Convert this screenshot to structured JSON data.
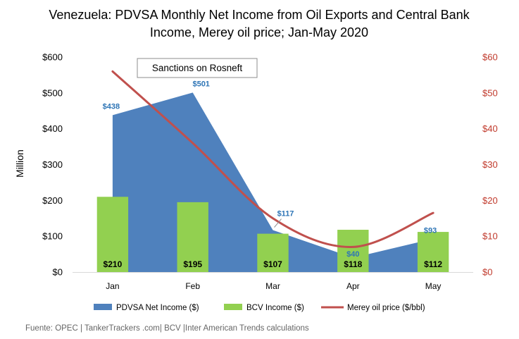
{
  "chart_data": {
    "type": "area",
    "title_lines": [
      "Venezuela: PDVSA Monthly Net Income from Oil Exports and Central Bank",
      "Income, Merey oil price; Jan-May 2020"
    ],
    "ylabel": "Million",
    "ylim": [
      0,
      600
    ],
    "y2lim": [
      0,
      60
    ],
    "yticks": [
      "$0",
      "$100",
      "$200",
      "$300",
      "$400",
      "$500",
      "$600"
    ],
    "y2ticks": [
      "$0",
      "$10",
      "$20",
      "$30",
      "$40",
      "$50",
      "$60"
    ],
    "categories": [
      "Jan",
      "Feb",
      "Mar",
      "Apr",
      "May"
    ],
    "series": [
      {
        "name": "PDVSA Net Income ($)",
        "kind": "area",
        "axis": "left",
        "color": "#4f81bd",
        "values": [
          438,
          501,
          117,
          40,
          93
        ],
        "labels": [
          "$438",
          "$501",
          "$117",
          "$40",
          "$93"
        ]
      },
      {
        "name": "BCV  Income ($)",
        "kind": "bar",
        "axis": "left",
        "color": "#92d050",
        "values": [
          210,
          195,
          107,
          118,
          112
        ],
        "labels": [
          "$210",
          "$195",
          "$107",
          "$118",
          "$112"
        ]
      },
      {
        "name": "Merey  oil price ($/bbl)",
        "kind": "line",
        "axis": "right",
        "color": "#c0504d",
        "values": [
          56,
          36,
          15,
          7,
          16.5
        ]
      }
    ],
    "annotation": "Sanctions on Rosneft",
    "grid": false,
    "legend_position": "bottom"
  },
  "source": "Fuente: OPEC | TankerTrackers .com| BCV |Inter American Trends calculations"
}
